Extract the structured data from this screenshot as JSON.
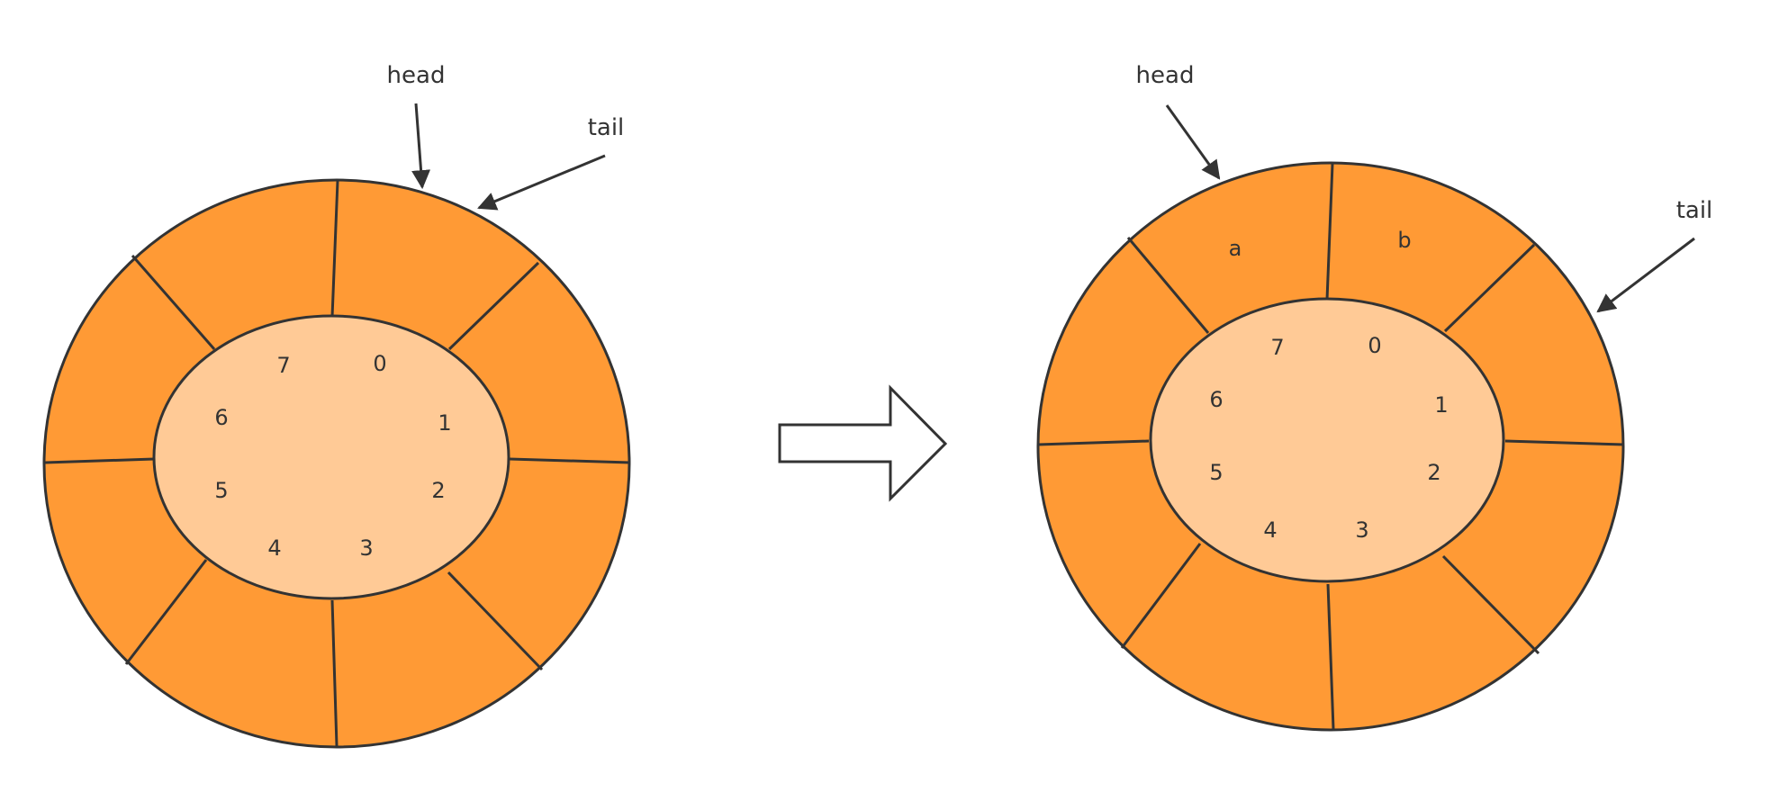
{
  "colors": {
    "outer_ring": "#FF9A35",
    "inner_disc": "#FFCA96",
    "stroke": "#333333",
    "arrow_fill": "#ffffff"
  },
  "left": {
    "head_label": "head",
    "tail_label": "tail",
    "indices": [
      "0",
      "1",
      "2",
      "3",
      "4",
      "5",
      "6",
      "7"
    ],
    "cells": [
      "",
      "",
      "",
      "",
      "",
      "",
      "",
      ""
    ]
  },
  "right": {
    "head_label": "head",
    "tail_label": "tail",
    "indices": [
      "0",
      "1",
      "2",
      "3",
      "4",
      "5",
      "6",
      "7"
    ],
    "cells": [
      "b",
      "",
      "",
      "",
      "",
      "",
      "",
      "a"
    ]
  },
  "transition_icon": "right-arrow-icon"
}
